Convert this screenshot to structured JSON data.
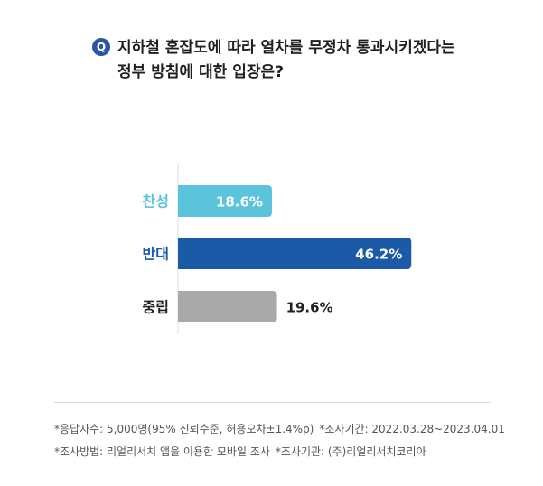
{
  "question": {
    "badge": "Q",
    "line1": "지하철 혼잡도에 따라 열차를 무정차 통과시키겠다는",
    "line2": "정부 방침에 대한 입장은?"
  },
  "chart_data": {
    "type": "bar",
    "orientation": "horizontal",
    "categories": [
      "찬성",
      "반대",
      "중립"
    ],
    "values": [
      18.6,
      46.2,
      19.6
    ],
    "value_labels": [
      "18.6%",
      "46.2%",
      "19.6%"
    ],
    "colors": [
      "#5bc4dc",
      "#1a5aa6",
      "#a9a9a9"
    ],
    "label_colors": [
      "#5bc4dc",
      "#1a5aa6",
      "#222222"
    ],
    "value_label_inside": [
      true,
      true,
      false
    ],
    "xlim": [
      0,
      50
    ]
  },
  "footnotes": {
    "line1a": "*응답자수: 5,000명(95% 신뢰수준, 허용오차±1.4%p)",
    "line1b": "*조사기간: 2022.03.28~2023.04.01",
    "line2a": "*조사방법: 리얼리서치 앱을 이용한 모바일 조사",
    "line2b": "*조사기관: (주)리얼리서치코리아"
  }
}
